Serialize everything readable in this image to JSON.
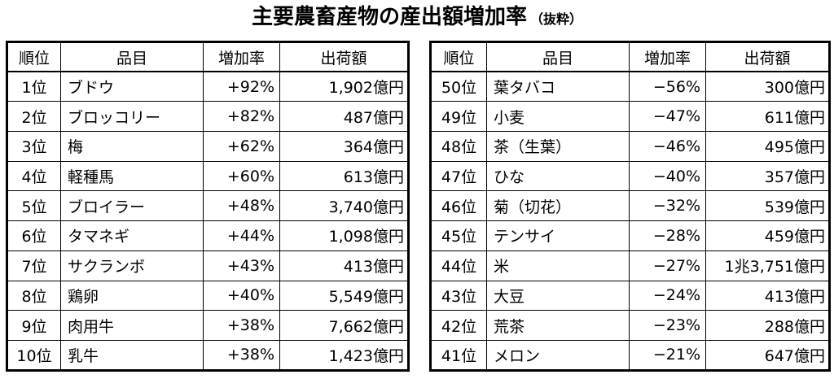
{
  "title": "主要農畜産物の産出額増加率",
  "subtitle": "（抜粋）",
  "headers": {
    "rank": "順位",
    "item": "品目",
    "rate": "増加率",
    "value": "出荷額"
  },
  "left_rows": [
    {
      "rank": "1位",
      "item": "ブドウ",
      "rate": "+92%",
      "value": "1,902億円"
    },
    {
      "rank": "2位",
      "item": "ブロッコリー",
      "rate": "+82%",
      "value": "487億円"
    },
    {
      "rank": "3位",
      "item": "梅",
      "rate": "+62%",
      "value": "364億円"
    },
    {
      "rank": "4位",
      "item": "軽種馬",
      "rate": "+60%",
      "value": "613億円"
    },
    {
      "rank": "5位",
      "item": "ブロイラー",
      "rate": "+48%",
      "value": "3,740億円"
    },
    {
      "rank": "6位",
      "item": "タマネギ",
      "rate": "+44%",
      "value": "1,098億円"
    },
    {
      "rank": "7位",
      "item": "サクランボ",
      "rate": "+43%",
      "value": "413億円"
    },
    {
      "rank": "8位",
      "item": "鶏卵",
      "rate": "+40%",
      "value": "5,549億円"
    },
    {
      "rank": "9位",
      "item": "肉用牛",
      "rate": "+38%",
      "value": "7,662億円"
    },
    {
      "rank": "10位",
      "item": "乳牛",
      "rate": "+38%",
      "value": "1,423億円"
    }
  ],
  "right_rows": [
    {
      "rank": "50位",
      "item": "葉タバコ",
      "rate": "−56%",
      "value": "300億円"
    },
    {
      "rank": "49位",
      "item": "小麦",
      "rate": "−47%",
      "value": "611億円"
    },
    {
      "rank": "48位",
      "item": "茶（生葉）",
      "rate": "−46%",
      "value": "495億円"
    },
    {
      "rank": "47位",
      "item": "ひな",
      "rate": "−40%",
      "value": "357億円"
    },
    {
      "rank": "46位",
      "item": "菊（切花）",
      "rate": "−32%",
      "value": "539億円"
    },
    {
      "rank": "45位",
      "item": "テンサイ",
      "rate": "−28%",
      "value": "459億円"
    },
    {
      "rank": "44位",
      "item": "米",
      "rate": "−27%",
      "value": "1兆3,751億円"
    },
    {
      "rank": "43位",
      "item": "大豆",
      "rate": "−24%",
      "value": "413億円"
    },
    {
      "rank": "42位",
      "item": "荒茶",
      "rate": "−23%",
      "value": "288億円"
    },
    {
      "rank": "41位",
      "item": "メロン",
      "rate": "−21%",
      "value": "647億円"
    }
  ]
}
